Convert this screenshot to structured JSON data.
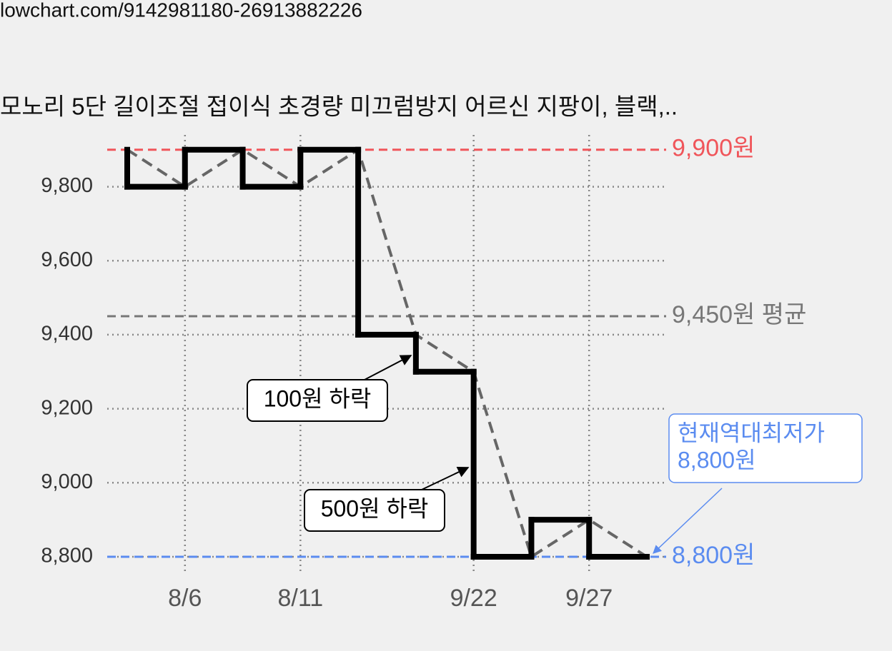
{
  "url": "lowchart.com/9142981180-26913882226",
  "chart_data": {
    "type": "step",
    "title": "모노리 5단 길이조절 접이식 초경량 미끄럼방지 어르신 지팡이, 블랙,..",
    "categories": [
      null,
      "8/6",
      null,
      "8/11",
      null,
      null,
      "9/22",
      null,
      "9/27",
      null
    ],
    "values": [
      9900,
      9800,
      9900,
      9800,
      9900,
      9400,
      9300,
      8800,
      8900,
      8800
    ],
    "color": "#000000",
    "trend_color": "#666666",
    "ylim": [
      8760,
      9940
    ],
    "yticks": [
      {
        "value": 8800,
        "label": "8,800"
      },
      {
        "value": 9000,
        "label": "9,000"
      },
      {
        "value": 9200,
        "label": "9,200"
      },
      {
        "value": 9400,
        "label": "9,400"
      },
      {
        "value": 9600,
        "label": "9,600"
      },
      {
        "value": 9800,
        "label": "9,800"
      }
    ],
    "grid": true,
    "reference_lines": [
      {
        "value": 9900,
        "label": "9,900원",
        "color": "#f0555a"
      },
      {
        "value": 9450,
        "label": "9,450원 평균",
        "color": "#777777"
      },
      {
        "value": 8800,
        "label": "8,800원",
        "color": "#5b8cf0"
      }
    ],
    "annotations": [
      {
        "lines": [
          "100원 하락"
        ]
      },
      {
        "lines": [
          "500원 하락"
        ]
      },
      {
        "lines": [
          "현재역대최저가",
          "8,800원"
        ],
        "color": "#5b8cf0"
      }
    ]
  }
}
